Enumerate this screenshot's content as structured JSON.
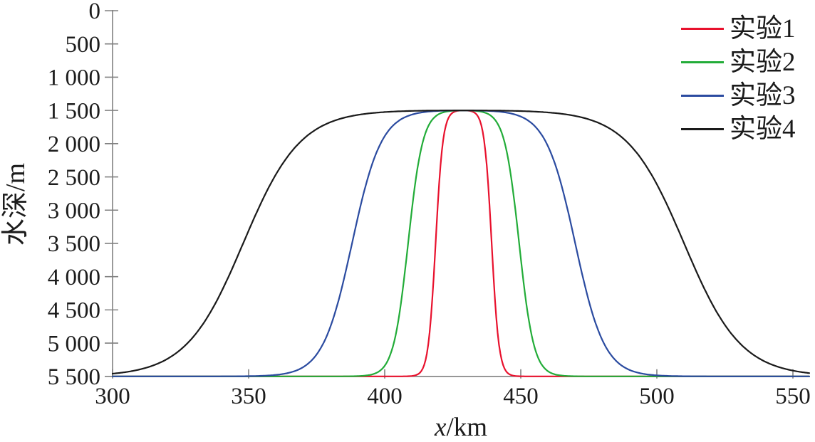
{
  "colors": {
    "background": "#ffffff",
    "axis": "#808080",
    "text": "#1c1c1c",
    "red": "#e8112d",
    "green": "#22ac38",
    "blue": "#2b4ba0",
    "black": "#1a1a1a"
  },
  "legend": {
    "position": "top-right",
    "items": [
      {
        "label": "实验1",
        "color": "#e8112d"
      },
      {
        "label": "实验2",
        "color": "#22ac38"
      },
      {
        "label": "实验3",
        "color": "#2b4ba0"
      },
      {
        "label": "实验4",
        "color": "#1a1a1a"
      }
    ]
  },
  "chart_data": {
    "type": "line",
    "title": "",
    "xlabel": "x/km",
    "xlabel_italic": "x",
    "xlabel_rest": "/km",
    "ylabel": "水深/m",
    "x_axis": {
      "min": 300,
      "max": 556,
      "ticks": [
        300,
        350,
        400,
        450,
        500,
        550
      ],
      "tick_labels": [
        "300",
        "350",
        "400",
        "450",
        "500",
        "550"
      ]
    },
    "y_axis": {
      "min": 0,
      "max": 5500,
      "inverted_depth_axis": true,
      "ticks": [
        0,
        500,
        1000,
        1500,
        2000,
        2500,
        3000,
        3500,
        4000,
        4500,
        5000,
        5500
      ],
      "tick_labels": [
        "0",
        "500",
        "1 000",
        "1 500",
        "2 000",
        "2 500",
        "3 000",
        "3 500",
        "4 000",
        "4 500",
        "5 000",
        "5 500"
      ]
    },
    "grid": false,
    "legend_position": "top-right",
    "profile_model": "depth(x) = base - (base - top) * [tanh((x-c+W)/d) - tanh((x-c-W)/d)] / (2*tanh(W/d))",
    "series": [
      {
        "name": "实验1",
        "color": "#e8112d",
        "center_km": 429,
        "half_width_at_mid_depth_km": 10.3,
        "transition_scale_km": 2.7,
        "plateau_depth_m": 1500,
        "base_depth_m": 5500
      },
      {
        "name": "实验2",
        "color": "#22ac38",
        "center_km": 429,
        "half_width_at_mid_depth_km": 20.4,
        "transition_scale_km": 5.4,
        "plateau_depth_m": 1500,
        "base_depth_m": 5500
      },
      {
        "name": "实验3",
        "color": "#2b4ba0",
        "center_km": 429,
        "half_width_at_mid_depth_km": 41.0,
        "transition_scale_km": 10.8,
        "plateau_depth_m": 1500,
        "base_depth_m": 5500
      },
      {
        "name": "实验4",
        "color": "#1a1a1a",
        "center_km": 429,
        "half_width_at_mid_depth_km": 81.0,
        "transition_scale_km": 21.0,
        "plateau_depth_m": 1500,
        "base_depth_m": 5500
      }
    ]
  }
}
